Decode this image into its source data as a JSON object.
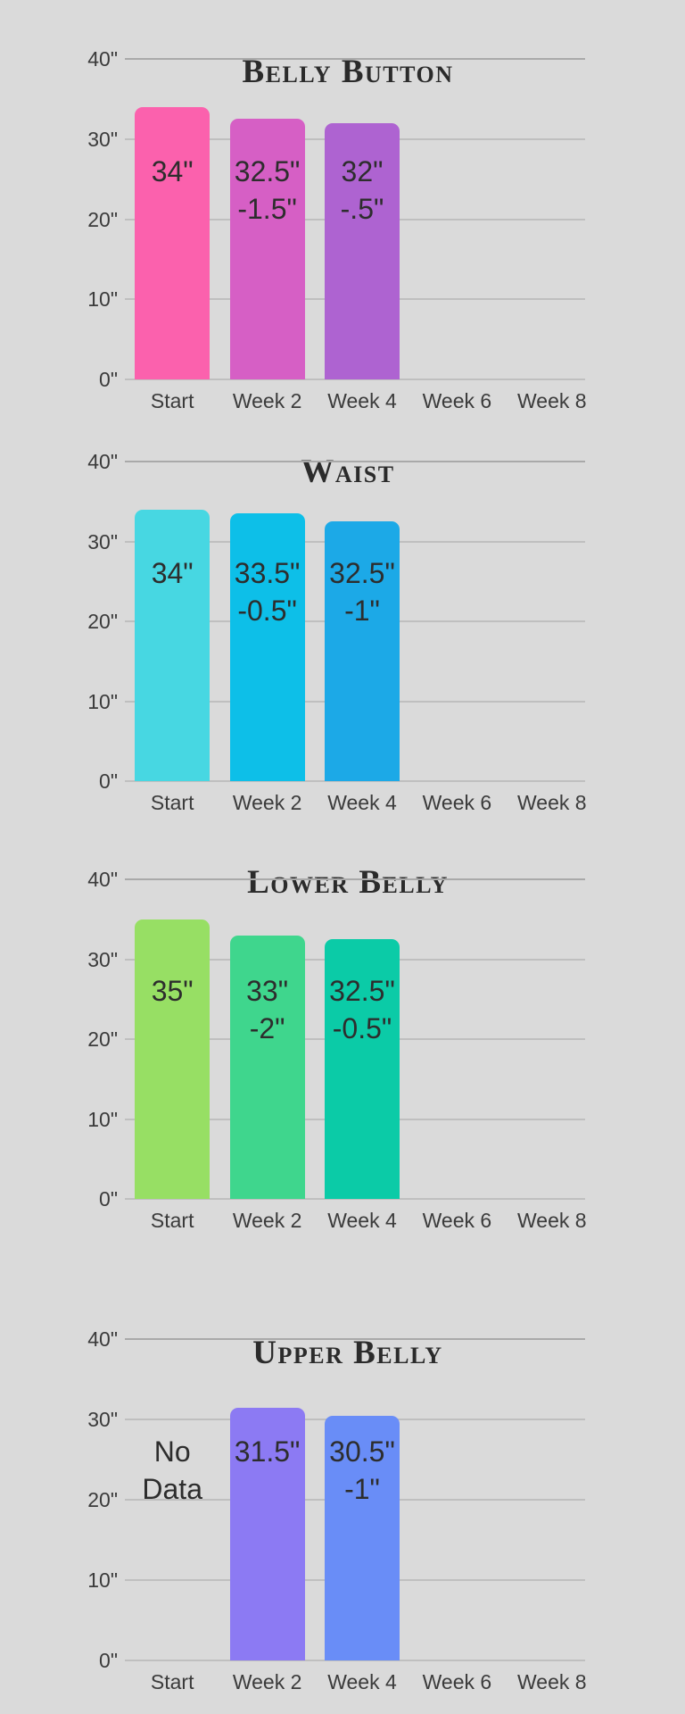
{
  "page": {
    "background_color": "#dadada",
    "text_color": "#2d2d2d",
    "gridline_color": "#bfbfbf"
  },
  "chart_data": [
    {
      "type": "bar",
      "title": "Belly Button",
      "ylim": [
        0,
        40
      ],
      "y_tick_labels": [
        "40\"",
        "30\"",
        "20\"",
        "10\"",
        "0\""
      ],
      "categories": [
        "Start",
        "Week 2",
        "Week 4",
        "Week 6",
        "Week 8"
      ],
      "grid": "horizontal",
      "legend": "none",
      "columns": [
        {
          "category": "Start",
          "value": 34,
          "color": "#fb61ad",
          "label_lines": [
            "34\""
          ]
        },
        {
          "category": "Week 2",
          "value": 32.5,
          "color": "#d65fc5",
          "label_lines": [
            "32.5\"",
            "-1.5\""
          ]
        },
        {
          "category": "Week 4",
          "value": 32,
          "color": "#ae63d1",
          "label_lines": [
            "32\"",
            "-.5\""
          ]
        },
        {
          "category": "Week 6",
          "value": null,
          "color": null,
          "label_lines": []
        },
        {
          "category": "Week 8",
          "value": null,
          "color": null,
          "label_lines": []
        }
      ]
    },
    {
      "type": "bar",
      "title": "Waist",
      "ylim": [
        0,
        40
      ],
      "y_tick_labels": [
        "40\"",
        "30\"",
        "20\"",
        "10\"",
        "0\""
      ],
      "categories": [
        "Start",
        "Week 2",
        "Week 4",
        "Week 6",
        "Week 8"
      ],
      "grid": "horizontal",
      "legend": "none",
      "columns": [
        {
          "category": "Start",
          "value": 34,
          "color": "#47d7e2",
          "label_lines": [
            "34\""
          ]
        },
        {
          "category": "Week 2",
          "value": 33.5,
          "color": "#0dbfe8",
          "label_lines": [
            "33.5\"",
            "-0.5\""
          ]
        },
        {
          "category": "Week 4",
          "value": 32.5,
          "color": "#1ca9e7",
          "label_lines": [
            "32.5\"",
            "-1\""
          ]
        },
        {
          "category": "Week 6",
          "value": null,
          "color": null,
          "label_lines": []
        },
        {
          "category": "Week 8",
          "value": null,
          "color": null,
          "label_lines": []
        }
      ]
    },
    {
      "type": "bar",
      "title": "Lower Belly",
      "ylim": [
        0,
        40
      ],
      "y_tick_labels": [
        "40\"",
        "30\"",
        "20\"",
        "10\"",
        "0\""
      ],
      "categories": [
        "Start",
        "Week 2",
        "Week 4",
        "Week 6",
        "Week 8"
      ],
      "grid": "horizontal",
      "legend": "none",
      "columns": [
        {
          "category": "Start",
          "value": 35,
          "color": "#97df64",
          "label_lines": [
            "35\""
          ]
        },
        {
          "category": "Week 2",
          "value": 33,
          "color": "#3fd68d",
          "label_lines": [
            "33\"",
            "-2\""
          ]
        },
        {
          "category": "Week 4",
          "value": 32.5,
          "color": "#0bcba7",
          "label_lines": [
            "32.5\"",
            "-0.5\""
          ]
        },
        {
          "category": "Week 6",
          "value": null,
          "color": null,
          "label_lines": []
        },
        {
          "category": "Week 8",
          "value": null,
          "color": null,
          "label_lines": []
        }
      ]
    },
    {
      "type": "bar",
      "title": "Upper Belly",
      "ylim": [
        0,
        40
      ],
      "y_tick_labels": [
        "40\"",
        "30\"",
        "20\"",
        "10\"",
        "0\""
      ],
      "categories": [
        "Start",
        "Week 2",
        "Week 4",
        "Week 6",
        "Week 8"
      ],
      "grid": "horizontal",
      "legend": "none",
      "columns": [
        {
          "category": "Start",
          "value": null,
          "color": null,
          "label_lines": [
            "No",
            "Data"
          ],
          "note": "No Data"
        },
        {
          "category": "Week 2",
          "value": 31.5,
          "color": "#8c7af3",
          "label_lines": [
            "31.5\""
          ]
        },
        {
          "category": "Week 4",
          "value": 30.5,
          "color": "#698df7",
          "label_lines": [
            "30.5\"",
            "-1\""
          ]
        },
        {
          "category": "Week 6",
          "value": null,
          "color": null,
          "label_lines": []
        },
        {
          "category": "Week 8",
          "value": null,
          "color": null,
          "label_lines": []
        }
      ]
    }
  ]
}
